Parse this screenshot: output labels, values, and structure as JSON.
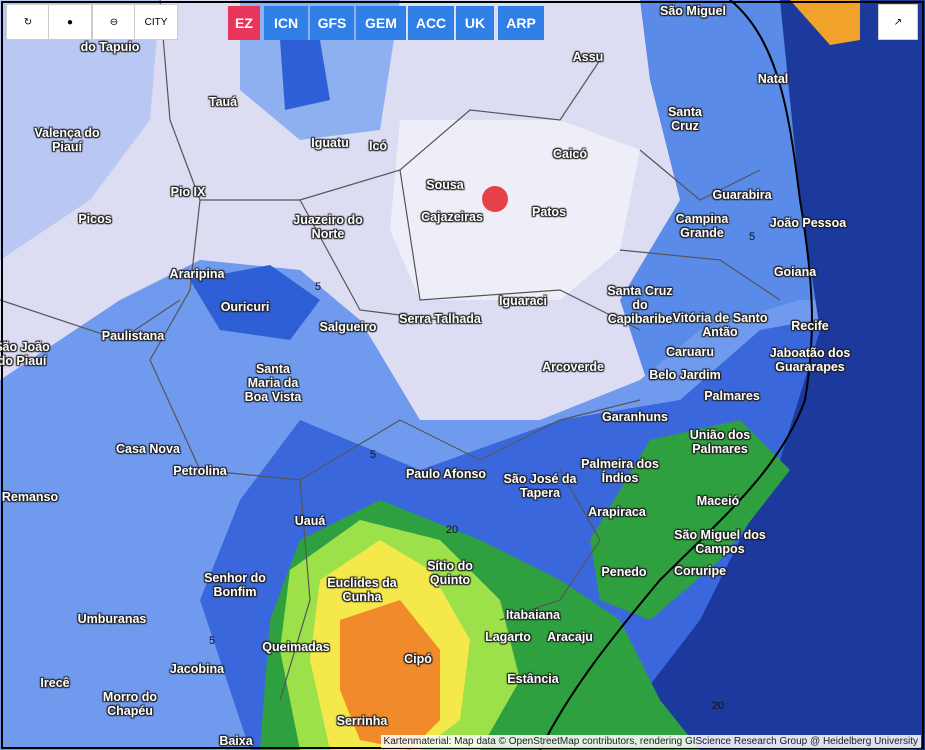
{
  "toolbar": {
    "city_button": "CITY",
    "models": [
      "EZ",
      "ICN",
      "GFS",
      "GEM",
      "ACC",
      "UK",
      "ARP"
    ]
  },
  "map": {
    "places": [
      "São Miguel",
      "Assu",
      "Natal",
      "do Tapuio",
      "Tauá",
      "Santa Cruz",
      "Valença do Piauí",
      "Iguatu",
      "Icó",
      "Caicó",
      "Sousa",
      "Pio IX",
      "Guarabira",
      "Cajazeiras",
      "Patos",
      "Picos",
      "Juazeiro do Norte",
      "Campina Grande",
      "João Pessoa",
      "Goiana",
      "Araripina",
      "Ouricuri",
      "Iguaraci",
      "Santa Cruz do Capibaribe",
      "Vitória de Santo Antão",
      "Salgueiro",
      "Serra Talhada",
      "Recife",
      "Paulistana",
      "Jaboatão dos Guararapes",
      "São João do Piauí",
      "Caruaru",
      "Santa Maria da Boa Vista",
      "Arcoverde",
      "Belo Jardim",
      "Palmares",
      "Garanhuns",
      "União dos Palmares",
      "Casa Nova",
      "Petrolina",
      "Paulo Afonso",
      "São José da Tapera",
      "Palmeira dos Índios",
      "Remanso",
      "Maceió",
      "Arapiraca",
      "Uauá",
      "São Miguel dos Campos",
      "Sítio do Quinto",
      "Senhor do Bonfim",
      "Euclides da Cunha",
      "Penedo",
      "Coruripe",
      "Umburanas",
      "Itabaiana",
      "Lagarto",
      "Aracaju",
      "Queimadas",
      "Cipó",
      "Jacobina",
      "Estância",
      "Irecê",
      "Morro do Chapéu",
      "Serrinha",
      "Baixa"
    ],
    "contour_labels": [
      "5",
      "5",
      "5",
      "5",
      "20",
      "20"
    ]
  },
  "attribution": "Kartenmaterial: Map data © OpenStreetMap contributors, rendering GIScience Research Group @ Heidelberg University"
}
